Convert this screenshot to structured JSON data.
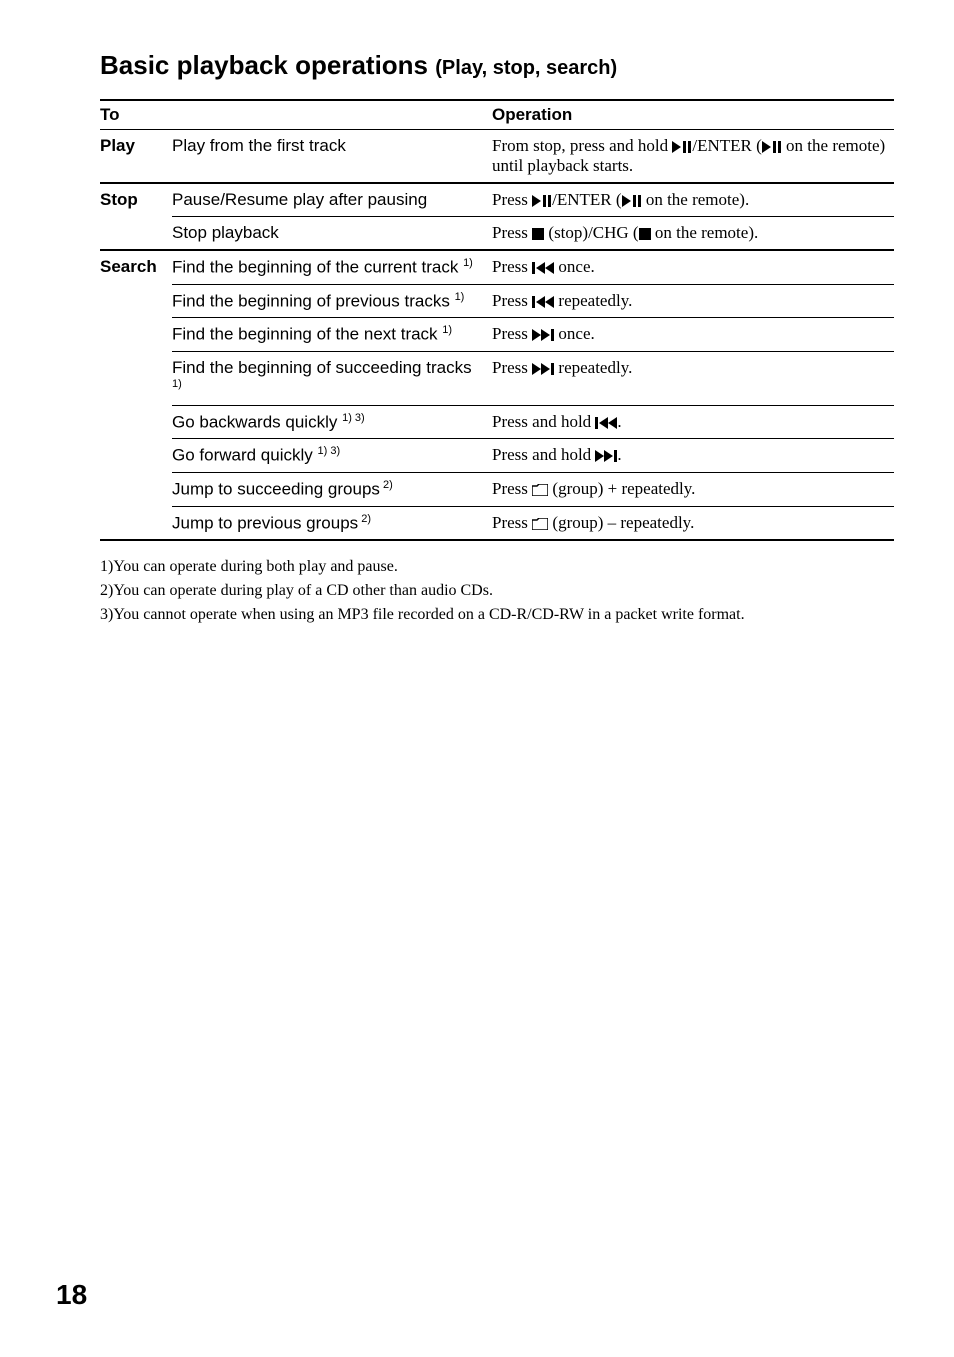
{
  "title": {
    "main": "Basic playback operations",
    "sub": "(Play, stop, search)"
  },
  "headers": {
    "to": "To",
    "operation": "Operation"
  },
  "rows": [
    {
      "section": "Play",
      "desc": "Play from the first track",
      "op_pre": "From stop, press and hold ",
      "icon1": "play-pause",
      "op_mid": "/ENTER (",
      "icon2": "play-pause",
      "op_post": " on the remote) until playback starts.",
      "section_end": true
    },
    {
      "section": "Stop",
      "desc": "Pause/Resume play after pausing",
      "op_pre": "Press ",
      "icon1": "play-pause",
      "op_mid": "/ENTER (",
      "icon2": "play-pause",
      "op_post": " on the remote)."
    },
    {
      "section": "",
      "desc": "Stop playback",
      "op_pre": "Press ",
      "icon1": "stop",
      "op_mid": " (stop)/CHG (",
      "icon2": "stop",
      "op_post": " on the remote).",
      "section_end": true
    },
    {
      "section": "Search",
      "desc": "Find the beginning of the current track ",
      "sup": "1)",
      "op_pre": "Press ",
      "icon1": "prev",
      "op_post": " once."
    },
    {
      "section": "",
      "desc": "Find the beginning of previous tracks ",
      "sup": "1)",
      "op_pre": "Press ",
      "icon1": "prev",
      "op_post": " repeatedly."
    },
    {
      "section": "",
      "desc": "Find the beginning of the next track ",
      "sup": "1)",
      "op_pre": "Press ",
      "icon1": "next",
      "op_post": " once."
    },
    {
      "section": "",
      "desc": "Find the beginning of succeeding tracks ",
      "sup": "1)",
      "op_pre": "Press ",
      "icon1": "next",
      "op_post": " repeatedly."
    },
    {
      "section": "",
      "desc": "Go backwards quickly ",
      "sup": "1) 3)",
      "op_pre": "Press and hold ",
      "icon1": "prev",
      "op_post": "."
    },
    {
      "section": "",
      "desc": "Go forward quickly ",
      "sup": "1) 3)",
      "op_pre": "Press and hold ",
      "icon1": "next",
      "op_post": "."
    },
    {
      "section": "",
      "desc": "Jump to succeeding groups",
      "sup": " 2)",
      "op_pre": "Press ",
      "icon1": "folder",
      "op_post": " (group) + repeatedly."
    },
    {
      "section": "",
      "desc": "Jump to previous groups",
      "sup": " 2)",
      "op_pre": "Press ",
      "icon1": "folder",
      "op_post": " (group) – repeatedly.",
      "last": true
    }
  ],
  "footnotes": [
    "1)You can operate during both play and pause.",
    "2)You can operate during play of a CD other than audio CDs.",
    "3)You cannot operate when using an MP3 file recorded on a CD-R/CD-RW in a packet write format."
  ],
  "pagenum": "18",
  "icons": {
    "play-pause": "<svg class='icon' width='20' height='12' viewBox='0 0 20 12'><polygon points='0,0 9,6 0,12' fill='#000'/><rect x='11' y='0' width='3' height='12' fill='#000'/><rect x='16' y='0' width='3' height='12' fill='#000'/></svg>",
    "stop": "<svg class='icon' width='12' height='12' viewBox='0 0 12 12'><rect x='0' y='0' width='12' height='12' fill='#000'/></svg>",
    "prev": "<svg class='icon' width='22' height='12' viewBox='0 0 22 12'><rect x='0' y='0' width='3' height='12' fill='#000'/><polygon points='13,0 4,6 13,12' fill='#000'/><polygon points='22,0 13,6 22,12' fill='#000'/></svg>",
    "next": "<svg class='icon' width='22' height='12' viewBox='0 0 22 12'><polygon points='0,0 9,6 0,12' fill='#000'/><polygon points='9,0 18,6 9,12' fill='#000'/><rect x='19' y='0' width='3' height='12' fill='#000'/></svg>",
    "folder": "<svg class='icon' width='16' height='12' viewBox='0 0 16 12'><path d='M0 2 L5 2 L7 0 L16 0 L16 12 L0 12 Z' fill='none' stroke='#000' stroke-width='1.5'/></svg>"
  }
}
